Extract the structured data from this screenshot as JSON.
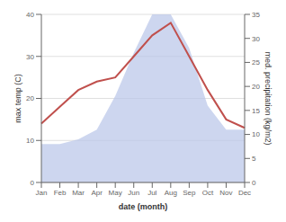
{
  "chart_data": {
    "type": "line",
    "categories": [
      "Jan",
      "Feb",
      "Mar",
      "Apr",
      "May",
      "Jun",
      "Jul",
      "Aug",
      "Sep",
      "Oct",
      "Nov",
      "Dec"
    ],
    "xlabel": "date (month)",
    "ylabel": "max temp (C)",
    "y2label": "med. precipitation (kg/m2)",
    "series": [
      {
        "type": "area",
        "axis": "y2",
        "color": "#b8c4e8",
        "values": [
          8,
          8,
          9,
          11,
          18,
          27,
          35,
          35,
          28,
          16,
          11,
          11
        ]
      },
      {
        "type": "line",
        "axis": "y",
        "color": "#c0504d",
        "values": [
          14,
          18,
          22,
          24,
          25,
          30,
          35,
          38,
          30,
          22,
          15,
          13
        ]
      }
    ],
    "ylim": [
      0,
      40
    ],
    "yticks": [
      0,
      10,
      20,
      30,
      40
    ],
    "y2lim": [
      0,
      35
    ],
    "y2ticks": [
      0,
      5,
      10,
      15,
      20,
      25,
      30,
      35
    ],
    "grid": true
  }
}
